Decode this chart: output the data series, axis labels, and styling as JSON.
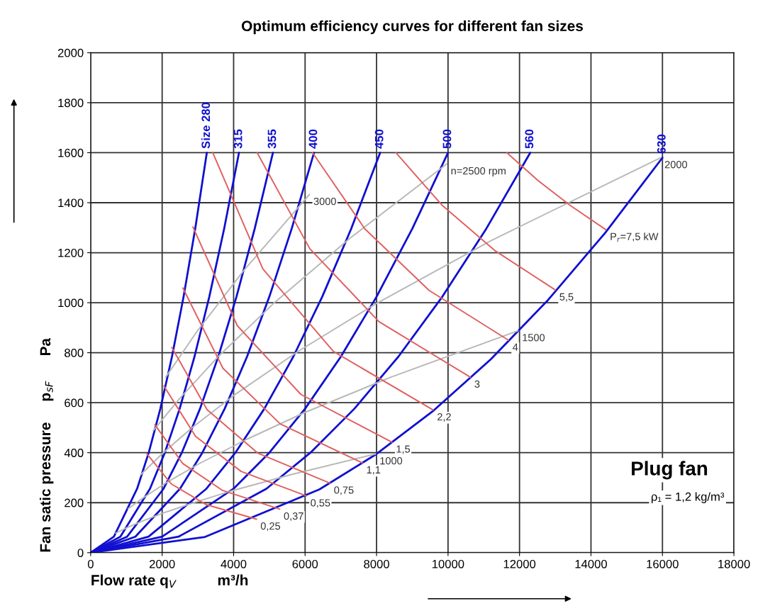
{
  "chart_data": {
    "type": "line",
    "title": "Optimum efficiency curves for different fan sizes",
    "xlabel": "Flow rate q$_{V}$          m³/h",
    "ylabel": "Fan satic pressure     p$_{sF}$      Pa",
    "xlim": [
      0,
      18000
    ],
    "ylim": [
      0,
      2000
    ],
    "xticks": [
      0,
      2000,
      4000,
      6000,
      8000,
      10000,
      12000,
      14000,
      16000,
      18000
    ],
    "yticks": [
      0,
      200,
      400,
      600,
      800,
      1000,
      1200,
      1400,
      1600,
      1800,
      2000
    ],
    "grid": true,
    "legend": false,
    "annotations": [
      "Plug fan",
      "ρ₁ = 1,2 kg/m³"
    ],
    "series": [
      {
        "name": "Size 280",
        "color": "#1010d0",
        "x": [
          0,
          650,
          1300,
          1625,
          1950,
          2275,
          2600,
          2925,
          3250
        ],
        "values": [
          0,
          64,
          256,
          400,
          576,
          784,
          1024,
          1296,
          1600
        ]
      },
      {
        "name": "315",
        "color": "#1010d0",
        "x": [
          0,
          830,
          1660,
          2075,
          2490,
          2905,
          3320,
          3735,
          4150
        ],
        "values": [
          0,
          64,
          256,
          400,
          576,
          784,
          1024,
          1296,
          1600
        ]
      },
      {
        "name": "355",
        "color": "#1010d0",
        "x": [
          0,
          1020,
          2040,
          2550,
          3060,
          3570,
          4080,
          4590,
          5100
        ],
        "values": [
          0,
          64,
          256,
          400,
          576,
          784,
          1024,
          1296,
          1600
        ]
      },
      {
        "name": "400",
        "color": "#1010d0",
        "x": [
          0,
          1250,
          2500,
          3125,
          3750,
          4375,
          5000,
          5625,
          6250
        ],
        "values": [
          0,
          64,
          256,
          400,
          576,
          784,
          1024,
          1296,
          1600
        ]
      },
      {
        "name": "450",
        "color": "#1010d0",
        "x": [
          0,
          1620,
          3240,
          4050,
          4860,
          5670,
          6480,
          7290,
          8100
        ],
        "values": [
          0,
          64,
          256,
          400,
          576,
          784,
          1024,
          1296,
          1600
        ]
      },
      {
        "name": "500",
        "color": "#1010d0",
        "x": [
          0,
          2000,
          4000,
          5000,
          6000,
          7000,
          8000,
          9000,
          10000
        ],
        "values": [
          0,
          64,
          256,
          400,
          576,
          784,
          1024,
          1296,
          1600
        ]
      },
      {
        "name": "560",
        "color": "#1010d0",
        "x": [
          0,
          2460,
          4920,
          6150,
          7380,
          8610,
          9840,
          11070,
          12300
        ],
        "values": [
          0,
          64,
          256,
          400,
          576,
          784,
          1024,
          1296,
          1600
        ]
      },
      {
        "name": "630",
        "color": "#1010d0",
        "x": [
          0,
          3200,
          6400,
          8000,
          9600,
          11200,
          12800,
          14400,
          16000
        ],
        "values": [
          0,
          63,
          253,
          395,
          569,
          774,
          1011,
          1280,
          1580
        ]
      },
      {
        "name": "1000",
        "color": "#b8b8b8",
        "x": [
          700,
          997,
          1427,
          2041,
          2906,
          3986,
          5600,
          7973
        ],
        "values": [
          78,
          99,
          125,
          159,
          201,
          249,
          312,
          395
        ]
      },
      {
        "name": "1500",
        "color": "#b8b8b8",
        "x": [
          1050,
          1495,
          2140,
          3061,
          4359,
          5979,
          8400,
          11960
        ],
        "values": [
          176,
          222,
          282,
          358,
          453,
          560,
          702,
          888
        ]
      },
      {
        "name": "2000",
        "color": "#b8b8b8",
        "x": [
          1400,
          1993,
          2853,
          4082,
          5812,
          7972,
          11200,
          15947
        ],
        "values": [
          312,
          395,
          502,
          637,
          806,
          995,
          1248,
          1580
        ]
      },
      {
        "name": "n=2500 rpm",
        "color": "#b8b8b8",
        "x": [
          1750,
          2492,
          3566,
          5102,
          7264,
          9965
        ],
        "values": [
          488,
          617,
          784,
          995,
          1259,
          1555
        ]
      },
      {
        "name": "3000",
        "color": "#b8b8b8",
        "x": [
          2100,
          2990,
          4280,
          6123
        ],
        "values": [
          702,
          888,
          1128,
          1433
        ]
      },
      {
        "name": "0,25",
        "color": "#e06060",
        "x": [
          1574,
          2257,
          3236,
          4640
        ],
        "values": [
          395,
          275,
          192,
          134
        ]
      },
      {
        "name": "0,37",
        "color": "#e06060",
        "x": [
          1795,
          2574,
          3691,
          5289
        ],
        "values": [
          512,
          357,
          249,
          174
        ]
      },
      {
        "name": "0,55",
        "color": "#e06060",
        "x": [
          2048,
          2937,
          4211,
          6036
        ],
        "values": [
          667,
          465,
          325,
          227
        ]
      },
      {
        "name": "0,75",
        "color": "#e06060",
        "x": [
          2271,
          3257,
          4670,
          6693
        ],
        "values": [
          821,
          572,
          399,
          278
        ]
      },
      {
        "name": "1,1",
        "color": "#e06060",
        "x": [
          2580,
          3700,
          5305,
          7603
        ],
        "values": [
          1059,
          738,
          515,
          359
        ]
      },
      {
        "name": "1,5",
        "color": "#e06060",
        "x": [
          2861,
          4103,
          5883,
          8432
        ],
        "values": [
          1303,
          908,
          633,
          442
        ]
      },
      {
        "name": "2,2",
        "color": "#e06060",
        "x": [
          3417,
          4818,
          6794,
          9581
        ],
        "values": [
          1600,
          1135,
          805,
          571
        ]
      },
      {
        "name": "3",
        "color": "#e06060",
        "x": [
          4659,
          6131,
          8069,
          10624
        ],
        "values": [
          1600,
          1216,
          924,
          702
        ]
      },
      {
        "name": "4",
        "color": "#e06060",
        "x": [
          6210,
          7669,
          9471,
          11692
        ],
        "values": [
          1600,
          1296,
          1049,
          850
        ]
      },
      {
        "name": "5,5",
        "color": "#e06060",
        "x": [
          8541,
          9826,
          11305,
          13003
        ],
        "values": [
          1600,
          1391,
          1209,
          1051
        ]
      },
      {
        "name": "P$_{r}$=7,5 kW",
        "color": "#e06060",
        "x": [
          11647,
          12507,
          13430,
          14419
        ],
        "values": [
          1600,
          1490,
          1388,
          1292
        ]
      }
    ]
  }
}
